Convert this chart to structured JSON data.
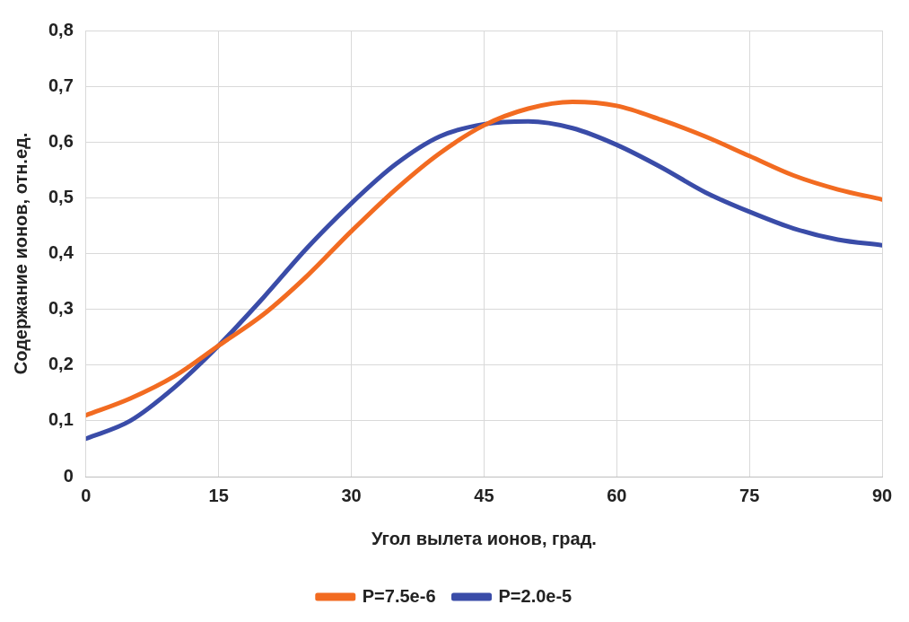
{
  "chart_data": {
    "type": "line",
    "xlabel": "Угол вылета ионов, град.",
    "ylabel": "Содержание ионов, отн.ед.",
    "x": [
      0,
      5,
      10,
      15,
      20,
      25,
      30,
      35,
      40,
      45,
      50,
      55,
      60,
      65,
      70,
      75,
      80,
      85,
      90
    ],
    "xlim": [
      0,
      90
    ],
    "xticks": [
      0,
      15,
      30,
      45,
      60,
      75,
      90
    ],
    "ylim": [
      0,
      0.8
    ],
    "yticks": [
      {
        "value": 0,
        "label": "0"
      },
      {
        "value": 0.1,
        "label": "0,1"
      },
      {
        "value": 0.2,
        "label": "0,2"
      },
      {
        "value": 0.3,
        "label": "0,3"
      },
      {
        "value": 0.4,
        "label": "0,4"
      },
      {
        "value": 0.5,
        "label": "0,5"
      },
      {
        "value": 0.6,
        "label": "0,6"
      },
      {
        "value": 0.7,
        "label": "0,7"
      },
      {
        "value": 0.8,
        "label": "0,8"
      }
    ],
    "grid": true,
    "legend": "bottom",
    "marker": "none",
    "line_style": "solid",
    "series": [
      {
        "name": "P=7.5e-6",
        "color": "#f26b21",
        "values": [
          0.11,
          0.14,
          0.18,
          0.235,
          0.29,
          0.36,
          0.44,
          0.515,
          0.58,
          0.63,
          0.66,
          0.672,
          0.665,
          0.64,
          0.61,
          0.575,
          0.54,
          0.515,
          0.497
        ]
      },
      {
        "name": "P=2.0e-5",
        "color": "#3a4ca8",
        "values": [
          0.068,
          0.1,
          0.16,
          0.235,
          0.32,
          0.41,
          0.49,
          0.56,
          0.61,
          0.632,
          0.637,
          0.625,
          0.595,
          0.555,
          0.51,
          0.475,
          0.445,
          0.425,
          0.415
        ]
      }
    ]
  }
}
